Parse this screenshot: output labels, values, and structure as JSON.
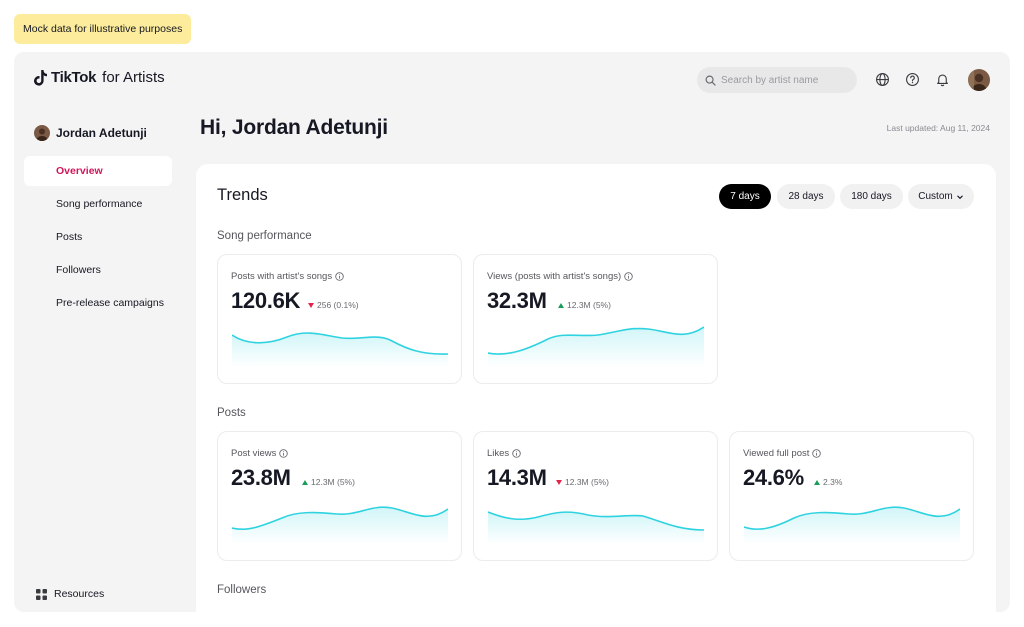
{
  "banner": "Mock data for illustrative purposes",
  "header": {
    "brand": "TikTok",
    "brand_suffix": "for Artists",
    "search_placeholder": "Search by artist name",
    "icons": [
      "globe-icon",
      "help-icon",
      "bell-icon"
    ]
  },
  "sidebar": {
    "user_name": "Jordan Adetunji",
    "items": [
      {
        "label": "Overview",
        "active": true
      },
      {
        "label": "Song performance",
        "active": false
      },
      {
        "label": "Posts",
        "active": false
      },
      {
        "label": "Followers",
        "active": false
      },
      {
        "label": "Pre-release campaigns",
        "active": false
      }
    ],
    "resources_label": "Resources"
  },
  "main": {
    "greeting": "Hi, Jordan Adetunji",
    "last_updated": "Last updated: Aug 11, 2024",
    "trends_title": "Trends",
    "ranges": [
      "7 days",
      "28 days",
      "180 days",
      "Custom"
    ],
    "selected_range": "7 days",
    "sections": {
      "song_performance": "Song performance",
      "posts": "Posts",
      "followers": "Followers"
    },
    "metrics": {
      "posts_with_songs": {
        "title": "Posts with artist's songs",
        "value": "120.6K",
        "delta": "256 (0.1%)",
        "trend": "down"
      },
      "views_posts_songs": {
        "title": "Views (posts with artist's songs)",
        "value": "32.3M",
        "delta": "12.3M (5%)",
        "trend": "up"
      },
      "post_views": {
        "title": "Post views",
        "value": "23.8M",
        "delta": "12.3M (5%)",
        "trend": "up"
      },
      "likes": {
        "title": "Likes",
        "value": "14.3M",
        "delta": "12.3M (5%)",
        "trend": "down"
      },
      "viewed_full_post": {
        "title": "Viewed full post",
        "value": "24.6%",
        "delta": "2.3%",
        "trend": "up"
      }
    }
  },
  "colors": {
    "accent": "#d0165a",
    "sparkline": "#2fd3e0",
    "up": "#1a9d5b",
    "down": "#e2244b",
    "banner": "#fcec9b"
  }
}
